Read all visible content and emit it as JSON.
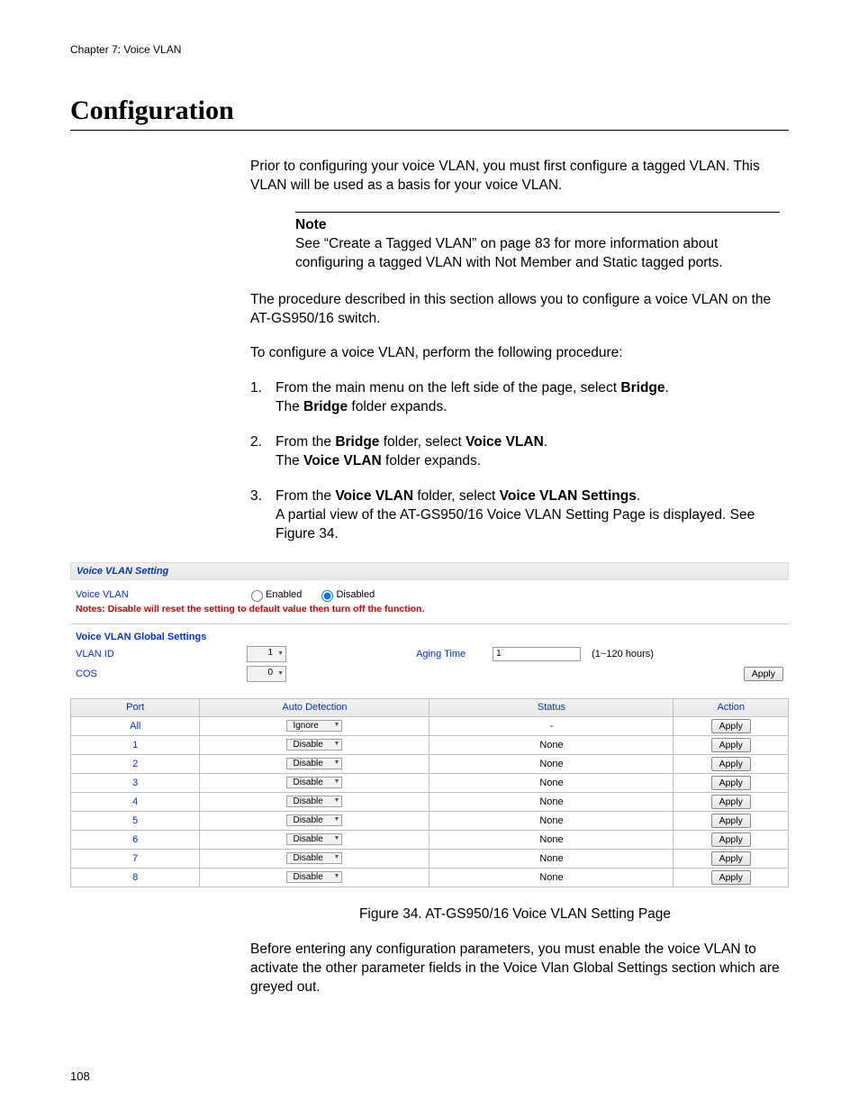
{
  "chapter_header": "Chapter 7: Voice VLAN",
  "section_title": "Configuration",
  "intro_para": "Prior to configuring your voice VLAN, you must first configure a tagged VLAN. This VLAN will be used as a basis for your voice VLAN.",
  "note": {
    "label": "Note",
    "text": "See “Create a Tagged VLAN” on page 83 for more information about configuring a tagged VLAN with Not Member and Static tagged ports."
  },
  "para2": "The procedure described in this section allows you to configure a voice VLAN on the AT-GS950/16 switch.",
  "para3": "To configure a voice VLAN, perform the following procedure:",
  "steps": [
    {
      "num": "1.",
      "line1_pre": "From the main menu on the left side of the page, select ",
      "line1_bold": "Bridge",
      "line1_post": ".",
      "line2_pre": "The ",
      "line2_bold": "Bridge",
      "line2_post": " folder expands."
    },
    {
      "num": "2.",
      "line1_pre": "From the ",
      "line1_bold": "Bridge",
      "line1_mid": " folder, select ",
      "line1_bold2": "Voice VLAN",
      "line1_post": ".",
      "line2_pre": "The ",
      "line2_bold": "Voice VLAN",
      "line2_post": " folder expands."
    },
    {
      "num": "3.",
      "line1_pre": "From the ",
      "line1_bold": "Voice VLAN",
      "line1_mid": " folder, select ",
      "line1_bold2": "Voice VLAN Settings",
      "line1_post": ".",
      "line2": "A partial view of the AT-GS950/16 Voice VLAN Setting Page is displayed. See Figure 34."
    }
  ],
  "screenshot": {
    "panel_title": "Voice VLAN Setting",
    "voice_vlan_label": "Voice VLAN",
    "radio_enabled": "Enabled",
    "radio_disabled": "Disabled",
    "radio_selected": "disabled",
    "red_note": "Notes: Disable will reset the setting to default value then turn off the function.",
    "global_heading": "Voice VLAN Global Settings",
    "vlan_id_label": "VLAN ID",
    "vlan_id_value": "1",
    "cos_label": "COS",
    "cos_value": "0",
    "aging_label": "Aging Time",
    "aging_value": "1",
    "aging_hint": "(1~120 hours)",
    "apply_label": "Apply",
    "table": {
      "headers": {
        "port": "Port",
        "auto": "Auto Detection",
        "status": "Status",
        "action": "Action"
      },
      "rows": [
        {
          "port": "All",
          "auto": "Ignore",
          "status": "-"
        },
        {
          "port": "1",
          "auto": "Disable",
          "status": "None"
        },
        {
          "port": "2",
          "auto": "Disable",
          "status": "None"
        },
        {
          "port": "3",
          "auto": "Disable",
          "status": "None"
        },
        {
          "port": "4",
          "auto": "Disable",
          "status": "None"
        },
        {
          "port": "5",
          "auto": "Disable",
          "status": "None"
        },
        {
          "port": "6",
          "auto": "Disable",
          "status": "None"
        },
        {
          "port": "7",
          "auto": "Disable",
          "status": "None"
        },
        {
          "port": "8",
          "auto": "Disable",
          "status": "None"
        }
      ]
    }
  },
  "figure_caption": "Figure 34. AT-GS950/16 Voice VLAN Setting Page",
  "closing_para": "Before entering any configuration parameters, you must enable the voice VLAN to activate the other parameter fields in the Voice Vlan Global Settings section which are greyed out.",
  "page_number": "108",
  "colors": {
    "link_blue": "#0033cc",
    "red": "#cc0000",
    "border_gray": "#bfbfbf"
  }
}
